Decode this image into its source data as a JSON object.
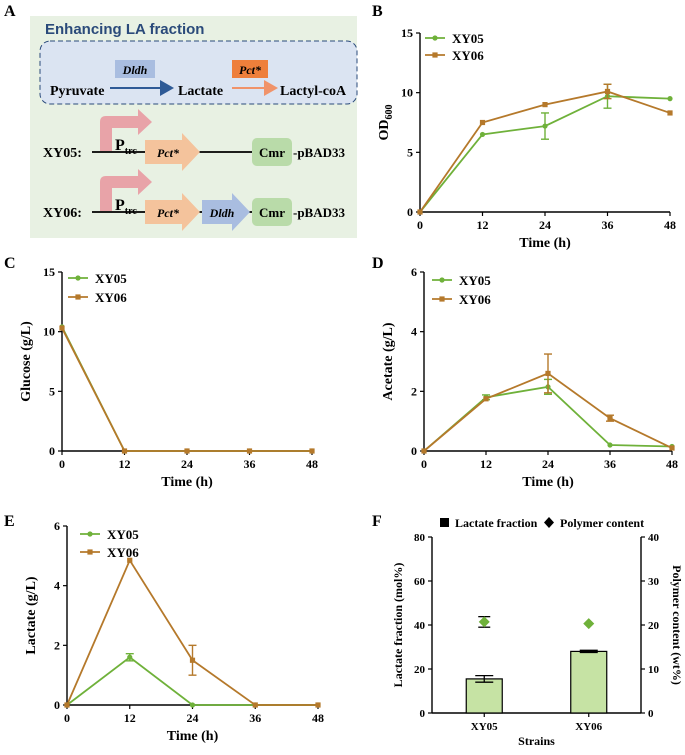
{
  "colors": {
    "xy05": "#6fb13a",
    "xy06": "#b5792b",
    "ldh": "#a9bde0",
    "pct": "#f4c39c",
    "pct_box": "#ee7f3b",
    "cmr": "#b9dba9",
    "promoter": "#e8a3a8",
    "panel_bg": "#e8f1e3",
    "dash_bg": "#dbe4f2"
  },
  "panelA": {
    "letter": "A",
    "title": "Enhancing LA fraction",
    "pathway": {
      "pyruvate": "Pyruvate",
      "lactate": "Lactate",
      "lactyl": "Lactyl-coA",
      "enzyme1": "Dldh",
      "enzyme2": "Pct*"
    },
    "xy05": {
      "label": "XY05:",
      "promoter": "P",
      "promoter_sub": "trc",
      "gene1": "Pct*",
      "marker": "Cmr",
      "plasmid": "-pBAD33"
    },
    "xy06": {
      "label": "XY06:",
      "promoter": "P",
      "promoter_sub": "trc",
      "gene1": "Pct*",
      "gene2": "Dldh",
      "marker": "Cmr",
      "plasmid": "-pBAD33"
    }
  },
  "chart_data": [
    {
      "panel": "B",
      "type": "line",
      "ylabel": "OD",
      "ylabel_sub": "600",
      "xlabel": "Time (h)",
      "x": [
        0,
        12,
        24,
        36,
        48
      ],
      "xlim": [
        0,
        48
      ],
      "ylim": [
        0,
        15
      ],
      "xticks": [
        "0",
        "12",
        "24",
        "36",
        "48"
      ],
      "yticks": [
        "0",
        "5",
        "10",
        "15"
      ],
      "legend": [
        "XY05",
        "XY06"
      ],
      "series": [
        {
          "name": "XY05",
          "values": [
            0,
            6.5,
            7.2,
            9.7,
            9.5
          ],
          "errors": [
            0,
            0,
            1.1,
            1.0,
            0
          ]
        },
        {
          "name": "XY06",
          "values": [
            0,
            7.5,
            9.0,
            10.1,
            8.3
          ],
          "errors": [
            0,
            0,
            0,
            0.6,
            0
          ]
        }
      ]
    },
    {
      "panel": "C",
      "type": "line",
      "ylabel": "Glucose (g/L)",
      "xlabel": "Time (h)",
      "x": [
        0,
        12,
        24,
        36,
        48
      ],
      "xlim": [
        0,
        48
      ],
      "ylim": [
        0,
        15
      ],
      "xticks": [
        "0",
        "12",
        "24",
        "36",
        "48"
      ],
      "yticks": [
        "0",
        "5",
        "10",
        "15"
      ],
      "legend": [
        "XY05",
        "XY06"
      ],
      "series": [
        {
          "name": "XY05",
          "values": [
            10.4,
            0,
            0,
            0,
            0
          ],
          "errors": [
            0,
            0,
            0,
            0,
            0
          ]
        },
        {
          "name": "XY06",
          "values": [
            10.3,
            0,
            0,
            0,
            0
          ],
          "errors": [
            0,
            0,
            0,
            0,
            0
          ]
        }
      ]
    },
    {
      "panel": "D",
      "type": "line",
      "ylabel": "Acetate (g/L)",
      "xlabel": "Time (h)",
      "x": [
        0,
        12,
        24,
        36,
        48
      ],
      "xlim": [
        0,
        48
      ],
      "ylim": [
        0,
        6
      ],
      "xticks": [
        "0",
        "12",
        "24",
        "36",
        "48"
      ],
      "yticks": [
        "0",
        "2",
        "4",
        "6"
      ],
      "legend": [
        "XY05",
        "XY06"
      ],
      "series": [
        {
          "name": "XY05",
          "values": [
            0,
            1.8,
            2.15,
            0.2,
            0.15
          ],
          "errors": [
            0,
            0.08,
            0.25,
            0,
            0
          ]
        },
        {
          "name": "XY06",
          "values": [
            0,
            1.75,
            2.6,
            1.1,
            0.1
          ],
          "errors": [
            0,
            0,
            0.65,
            0.1,
            0
          ]
        }
      ]
    },
    {
      "panel": "E",
      "type": "line",
      "ylabel": "Lactate (g/L)",
      "xlabel": "Time (h)",
      "x": [
        0,
        12,
        24,
        36,
        48
      ],
      "xlim": [
        0,
        48
      ],
      "ylim": [
        0,
        6
      ],
      "xticks": [
        "0",
        "12",
        "24",
        "36",
        "48"
      ],
      "yticks": [
        "0",
        "2",
        "4",
        "6"
      ],
      "legend": [
        "XY05",
        "XY06"
      ],
      "series": [
        {
          "name": "XY05",
          "values": [
            0,
            1.6,
            0,
            0,
            0
          ],
          "errors": [
            0,
            0.12,
            0,
            0,
            0
          ]
        },
        {
          "name": "XY06",
          "values": [
            0,
            4.85,
            1.5,
            0,
            0
          ],
          "errors": [
            0,
            0,
            0.5,
            0,
            0
          ]
        }
      ]
    },
    {
      "panel": "F",
      "type": "bar",
      "categories": [
        "XY05",
        "XY06"
      ],
      "xlabel": "Strains",
      "ylabel": "Lactate fraction (mol%)",
      "ylim": [
        0,
        80
      ],
      "yticks": [
        "0",
        "20",
        "40",
        "60",
        "80"
      ],
      "ylabel_right": "Polymer content (wt%)",
      "ylim_right": [
        0,
        40
      ],
      "yticks_right": [
        "0",
        "10",
        "20",
        "30",
        "40"
      ],
      "legend": [
        "Lactate fraction",
        "Polymer content"
      ],
      "bars": {
        "name": "Lactate fraction",
        "values": [
          15.5,
          28.0
        ],
        "errors": [
          1.5,
          0.5
        ]
      },
      "points": {
        "name": "Polymer content",
        "values": [
          20.7,
          20.3
        ],
        "errors": [
          1.2,
          0
        ]
      }
    }
  ]
}
